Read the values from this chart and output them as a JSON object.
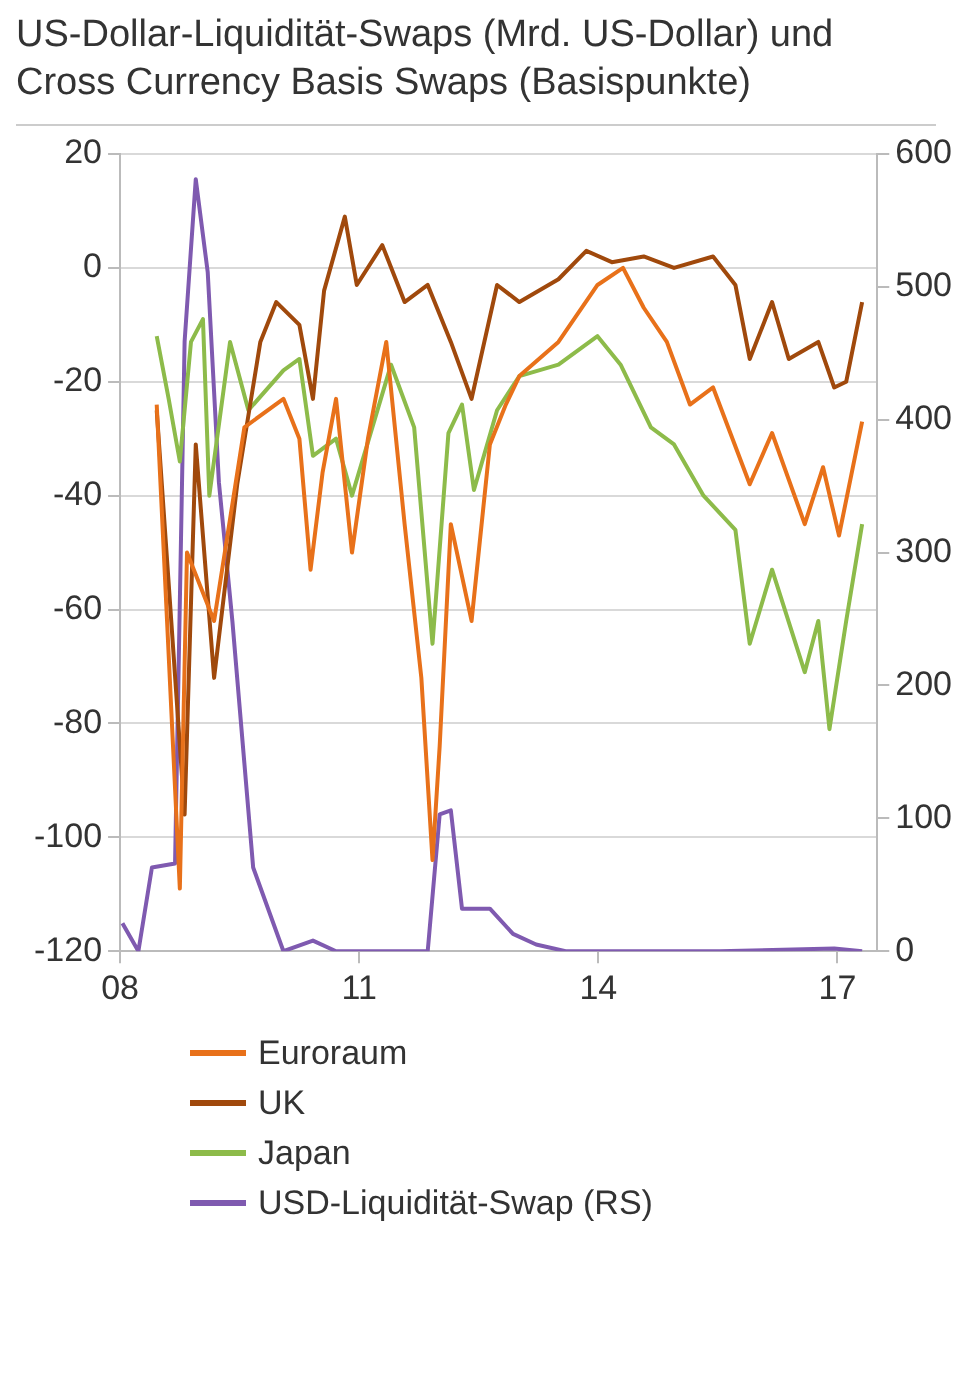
{
  "chart_data": {
    "type": "line",
    "title": "US-Dollar-Liquidität-Swaps (Mrd. US-Dollar) und Cross Currency Basis Swaps (Basispunkte)",
    "xlim": [
      2008,
      2017.5
    ],
    "xticks": [
      {
        "value": 2008,
        "label": "08"
      },
      {
        "value": 2011,
        "label": "11"
      },
      {
        "value": 2014,
        "label": "14"
      },
      {
        "value": 2017,
        "label": "17"
      }
    ],
    "ylim": [
      -120,
      20
    ],
    "yticks": [
      -120,
      -100,
      -80,
      -60,
      -40,
      -20,
      0,
      20
    ],
    "y2lim": [
      0,
      600
    ],
    "y2ticks": [
      0,
      100,
      200,
      300,
      400,
      500,
      600
    ],
    "grid": "y",
    "legend": "bottom",
    "marker": "none",
    "line_style": "solid",
    "series": [
      {
        "name": "Euroraum",
        "color": "#e8711a",
        "x": [
          2008.46,
          2008.75,
          2008.84,
          2009.18,
          2009.56,
          2010.05,
          2010.25,
          2010.39,
          2010.54,
          2010.71,
          2010.91,
          2011.11,
          2011.34,
          2011.57,
          2011.78,
          2011.92,
          2012.01,
          2012.15,
          2012.41,
          2012.64,
          2012.84,
          2013.01,
          2013.5,
          2013.99,
          2014.31,
          2014.57,
          2014.86,
          2015.15,
          2015.44,
          2015.9,
          2016.18,
          2016.59,
          2016.82,
          2017.02,
          2017.31
        ],
        "values": [
          -24,
          -109,
          -50,
          -62,
          -28,
          -23,
          -30,
          -53,
          -36,
          -23,
          -50,
          -30,
          -13,
          -45,
          -72,
          -104,
          -84,
          -45,
          -62,
          -31,
          -24,
          -19,
          -13,
          -3,
          0,
          -7,
          -13,
          -24,
          -21,
          -38,
          -29,
          -45,
          -35,
          -47,
          -27
        ]
      },
      {
        "name": "UK",
        "color": "#a0490c",
        "x": [
          2008.46,
          2008.81,
          2008.95,
          2009.18,
          2009.47,
          2009.76,
          2009.96,
          2010.25,
          2010.42,
          2010.56,
          2010.82,
          2010.97,
          2011.29,
          2011.57,
          2011.86,
          2012.15,
          2012.41,
          2012.73,
          2013.01,
          2013.5,
          2013.85,
          2014.17,
          2014.57,
          2014.95,
          2015.44,
          2015.72,
          2015.9,
          2016.18,
          2016.39,
          2016.76,
          2016.96,
          2017.11,
          2017.31
        ],
        "values": [
          -25,
          -96,
          -31,
          -72,
          -38,
          -13,
          -6,
          -10,
          -23,
          -4,
          9,
          -3,
          4,
          -6,
          -3,
          -13,
          -23,
          -3,
          -6,
          -2,
          3,
          1,
          2,
          0,
          2,
          -3,
          -16,
          -6,
          -16,
          -13,
          -21,
          -20,
          -6
        ]
      },
      {
        "name": "Japan",
        "color": "#8dbb4a",
        "x": [
          2008.46,
          2008.61,
          2008.75,
          2008.89,
          2009.04,
          2009.12,
          2009.38,
          2009.61,
          2010.05,
          2010.25,
          2010.42,
          2010.71,
          2010.91,
          2011.4,
          2011.69,
          2011.92,
          2012.12,
          2012.29,
          2012.44,
          2012.73,
          2013.01,
          2013.5,
          2013.99,
          2014.28,
          2014.66,
          2014.95,
          2015.32,
          2015.72,
          2015.9,
          2016.18,
          2016.59,
          2016.76,
          2016.9,
          2017.11,
          2017.31
        ],
        "values": [
          -12,
          -23,
          -34,
          -13,
          -9,
          -40,
          -13,
          -25,
          -18,
          -16,
          -33,
          -30,
          -40,
          -17,
          -28,
          -66,
          -29,
          -24,
          -39,
          -25,
          -19,
          -17,
          -12,
          -17,
          -28,
          -31,
          -40,
          -46,
          -66,
          -53,
          -71,
          -62,
          -81,
          -62,
          -45
        ]
      },
      {
        "name": "USD-Liquidität-Swap (RS)",
        "color": "#7f5ab0",
        "axis": "y2",
        "x": [
          2008.03,
          2008.23,
          2008.4,
          2008.69,
          2008.81,
          2008.95,
          2009.1,
          2009.24,
          2009.41,
          2009.67,
          2010.05,
          2010.42,
          2010.71,
          2011.86,
          2012.01,
          2012.15,
          2012.29,
          2012.64,
          2012.93,
          2013.22,
          2013.59,
          2015.52,
          2016.96,
          2017.31
        ],
        "values": [
          21,
          0,
          63,
          66,
          459,
          581,
          511,
          353,
          248,
          63,
          0,
          8,
          0,
          0,
          103,
          106,
          32,
          32,
          13,
          5,
          0,
          0,
          2,
          0
        ]
      }
    ]
  }
}
